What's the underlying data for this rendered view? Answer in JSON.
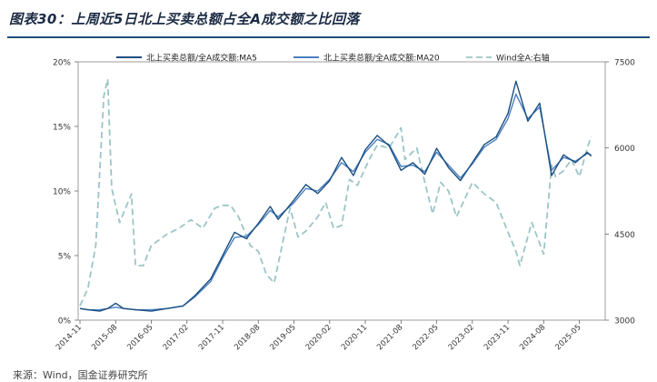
{
  "figure": {
    "title": "图表30：上周近5日北上买卖总额占全A成交额之比回落",
    "source": "来源：Wind，国金证券研究所"
  },
  "chart_data": {
    "type": "line",
    "x_tick_labels": [
      "2014-11",
      "2015-08",
      "2016-05",
      "2017-02",
      "2017-11",
      "2018-08",
      "2019-05",
      "2020-02",
      "2020-11",
      "2021-08",
      "2022-05",
      "2023-02",
      "2023-11",
      "2024-08",
      "2025-05"
    ],
    "y_left": {
      "ticks": [
        "0%",
        "5%",
        "10%",
        "15%",
        "20%"
      ],
      "range": [
        0,
        20
      ]
    },
    "y_right": {
      "ticks": [
        "3000",
        "4500",
        "6000",
        "7500"
      ],
      "range": [
        3000,
        7500
      ]
    },
    "series": [
      {
        "name": "北上买卖总额/全A成交额:MA5",
        "axis": "left",
        "color": "#1a4f80",
        "style": "solid",
        "x": [
          "2014-11",
          "2015-01",
          "2015-04",
          "2015-06",
          "2015-08",
          "2015-10",
          "2016-01",
          "2016-05",
          "2016-09",
          "2017-01",
          "2017-04",
          "2017-08",
          "2017-11",
          "2018-02",
          "2018-05",
          "2018-08",
          "2018-11",
          "2019-01",
          "2019-05",
          "2019-08",
          "2019-11",
          "2020-02",
          "2020-05",
          "2020-08",
          "2020-11",
          "2021-02",
          "2021-05",
          "2021-08",
          "2021-11",
          "2022-02",
          "2022-05",
          "2022-08",
          "2022-11",
          "2023-02",
          "2023-05",
          "2023-08",
          "2023-11",
          "2024-01",
          "2024-04",
          "2024-07",
          "2024-10",
          "2025-01",
          "2025-04",
          "2025-07",
          "2025-08"
        ],
        "y": [
          0.9,
          0.8,
          0.7,
          0.9,
          1.3,
          0.9,
          0.8,
          0.7,
          0.9,
          1.1,
          1.9,
          3.2,
          5.0,
          6.8,
          6.3,
          7.5,
          8.8,
          7.8,
          9.3,
          10.5,
          9.8,
          10.8,
          12.6,
          11.2,
          13.2,
          14.3,
          13.5,
          11.6,
          12.2,
          11.3,
          13.3,
          11.8,
          10.8,
          12.2,
          13.6,
          14.2,
          16.0,
          18.5,
          15.4,
          16.8,
          11.2,
          12.8,
          12.2,
          13.0,
          12.7
        ]
      },
      {
        "name": "北上买卖总额/全A成交额:MA20",
        "axis": "left",
        "color": "#4a7fc1",
        "style": "solid",
        "x": [
          "2014-11",
          "2015-01",
          "2015-04",
          "2015-06",
          "2015-08",
          "2015-10",
          "2016-01",
          "2016-05",
          "2016-09",
          "2017-01",
          "2017-04",
          "2017-08",
          "2017-11",
          "2018-02",
          "2018-05",
          "2018-08",
          "2018-11",
          "2019-01",
          "2019-05",
          "2019-08",
          "2019-11",
          "2020-02",
          "2020-05",
          "2020-08",
          "2020-11",
          "2021-02",
          "2021-05",
          "2021-08",
          "2021-11",
          "2022-02",
          "2022-05",
          "2022-08",
          "2022-11",
          "2023-02",
          "2023-05",
          "2023-08",
          "2023-11",
          "2024-01",
          "2024-04",
          "2024-07",
          "2024-10",
          "2025-01",
          "2025-04",
          "2025-07",
          "2025-08"
        ],
        "y": [
          0.9,
          0.8,
          0.8,
          0.9,
          1.0,
          0.9,
          0.8,
          0.8,
          0.9,
          1.1,
          1.8,
          3.0,
          4.8,
          6.4,
          6.5,
          7.4,
          8.5,
          8.0,
          9.1,
          10.2,
          10.0,
          10.9,
          12.2,
          11.5,
          13.0,
          14.0,
          13.6,
          11.9,
          12.0,
          11.5,
          13.0,
          12.0,
          11.0,
          12.1,
          13.4,
          14.0,
          15.6,
          17.5,
          15.6,
          16.5,
          11.6,
          12.6,
          12.3,
          12.9,
          12.8
        ]
      },
      {
        "name": "Wind全A:右轴",
        "axis": "right",
        "color": "#9cc5c8",
        "style": "dashed",
        "x": [
          "2014-11",
          "2015-01",
          "2015-03",
          "2015-05",
          "2015-06",
          "2015-07",
          "2015-09",
          "2015-12",
          "2016-01",
          "2016-03",
          "2016-05",
          "2016-09",
          "2016-12",
          "2017-03",
          "2017-06",
          "2017-09",
          "2017-11",
          "2018-01",
          "2018-03",
          "2018-06",
          "2018-08",
          "2018-10",
          "2018-12",
          "2019-02",
          "2019-04",
          "2019-06",
          "2019-08",
          "2019-11",
          "2020-01",
          "2020-03",
          "2020-05",
          "2020-07",
          "2020-09",
          "2020-12",
          "2021-02",
          "2021-05",
          "2021-08",
          "2021-09",
          "2021-12",
          "2022-02",
          "2022-04",
          "2022-06",
          "2022-08",
          "2022-10",
          "2022-12",
          "2023-02",
          "2023-05",
          "2023-08",
          "2023-10",
          "2024-01",
          "2024-02",
          "2024-05",
          "2024-08",
          "2024-10",
          "2024-11",
          "2025-01",
          "2025-03",
          "2025-05",
          "2025-07",
          "2025-08"
        ],
        "y": [
          3250,
          3550,
          4300,
          6900,
          7200,
          5300,
          4700,
          5200,
          3950,
          3950,
          4300,
          4500,
          4600,
          4750,
          4600,
          4950,
          5000,
          5000,
          4800,
          4300,
          4200,
          3800,
          3650,
          4300,
          4950,
          4450,
          4550,
          4800,
          5050,
          4600,
          4650,
          5450,
          5350,
          5800,
          6050,
          6000,
          6350,
          5800,
          6000,
          5400,
          4850,
          5400,
          5250,
          4800,
          5100,
          5400,
          5200,
          5050,
          4700,
          4200,
          3950,
          4700,
          4150,
          5700,
          5500,
          5600,
          5800,
          5500,
          6000,
          6200
        ]
      }
    ]
  }
}
